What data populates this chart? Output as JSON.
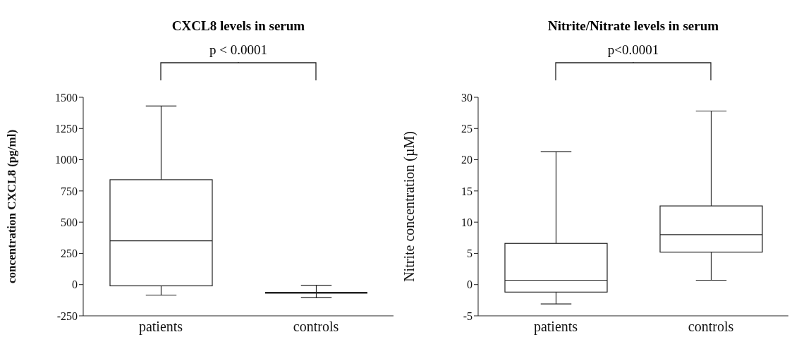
{
  "chart_data": [
    {
      "type": "box",
      "title": "CXCL8 levels in serum",
      "ylabel": "concentration CXCL8 (pg/ml)",
      "categories": [
        "patients",
        "controls"
      ],
      "boxes": [
        {
          "low": -85,
          "q1": -10,
          "median": 350,
          "q3": 840,
          "high": 1430
        },
        {
          "low": -105,
          "q1": -65,
          "median": -65,
          "q3": -65,
          "high": -5
        }
      ],
      "ylim": [
        -250,
        1500
      ],
      "yticks": [
        -250,
        0,
        250,
        500,
        750,
        1000,
        1250,
        1500
      ],
      "grid": false,
      "annotations": [
        "p < 0.0001"
      ]
    },
    {
      "type": "box",
      "title": "Nitrite/Nitrate levels in serum",
      "ylabel": "Nitrite concentration (µM)",
      "categories": [
        "patients",
        "controls"
      ],
      "boxes": [
        {
          "low": -3.1,
          "q1": -1.2,
          "median": 0.7,
          "q3": 6.6,
          "high": 21.3
        },
        {
          "low": 0.7,
          "q1": 5.2,
          "median": 8,
          "q3": 12.6,
          "high": 27.8
        }
      ],
      "ylim": [
        -5,
        30
      ],
      "yticks": [
        -5,
        0,
        5,
        10,
        15,
        20,
        25,
        30
      ],
      "grid": false,
      "annotations": [
        "p<0.0001"
      ]
    }
  ]
}
